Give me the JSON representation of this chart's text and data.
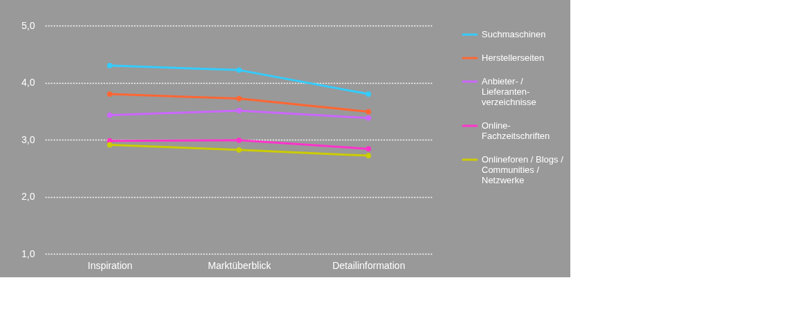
{
  "chart_data": {
    "type": "line",
    "categories": [
      "Inspiration",
      "Marktüberblick",
      "Detailinformation"
    ],
    "series": [
      {
        "name": "Suchmaschinen",
        "color": "#33ccff",
        "values": [
          4.3,
          4.22,
          3.8
        ]
      },
      {
        "name": "Herstellerseiten",
        "color": "#ff6633",
        "values": [
          3.8,
          3.72,
          3.49
        ]
      },
      {
        "name": "Anbieter- /\nLieferanten-\nverzeichnisse",
        "color": "#cc66ff",
        "values": [
          3.43,
          3.51,
          3.38
        ]
      },
      {
        "name": "Online-\nFachzeitschriften",
        "color": "#ff33cc",
        "values": [
          2.98,
          2.99,
          2.84
        ]
      },
      {
        "name": "Onlineforen / Blogs /\nCommunities /\nNetzwerke",
        "color": "#cccc00",
        "values": [
          2.91,
          2.82,
          2.72
        ]
      }
    ],
    "ylim": [
      1.0,
      5.0
    ],
    "yticks": [
      {
        "value": 1,
        "label": "1,0"
      },
      {
        "value": 2,
        "label": "2,0"
      },
      {
        "value": 3,
        "label": "3,0"
      },
      {
        "value": 4,
        "label": "4,0"
      },
      {
        "value": 5,
        "label": "5,0"
      }
    ],
    "grid": "y",
    "legend": "right",
    "marker": "circle",
    "line_style": "solid"
  }
}
